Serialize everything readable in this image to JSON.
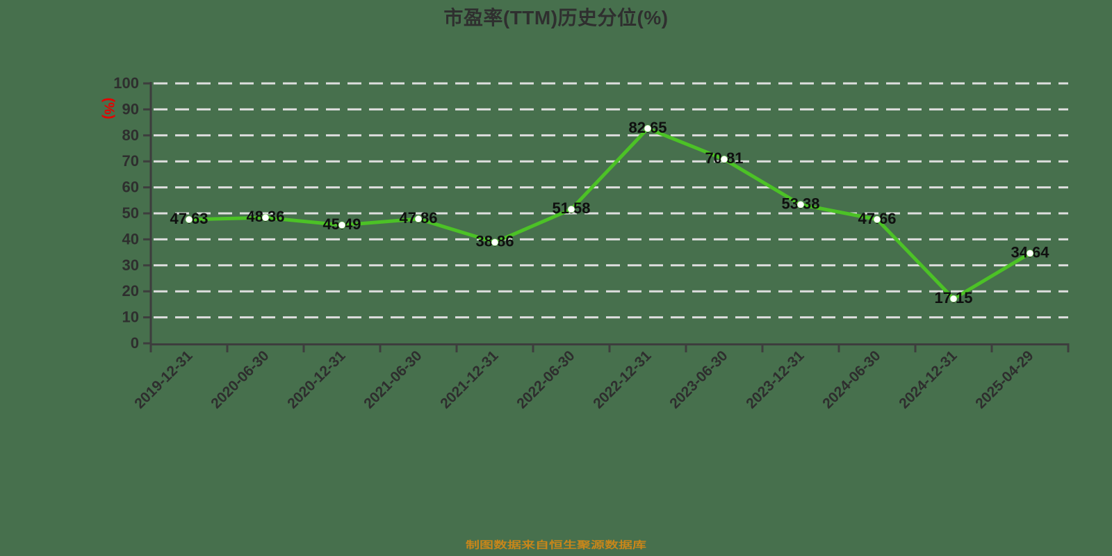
{
  "chart_data": {
    "type": "line",
    "title": "市盈率(TTM)历史分位(%)",
    "ylabel": "(%)",
    "xlabel": "",
    "footer": "制图数据来自恒生聚源数据库",
    "categories": [
      "2019-12-31",
      "2020-06-30",
      "2020-12-31",
      "2021-06-30",
      "2021-12-31",
      "2022-06-30",
      "2022-12-31",
      "2023-06-30",
      "2023-12-31",
      "2024-06-30",
      "2024-12-31",
      "2025-04-29"
    ],
    "values": [
      47.63,
      48.36,
      45.49,
      47.86,
      38.86,
      51.58,
      82.65,
      70.81,
      53.38,
      47.66,
      17.15,
      34.64
    ],
    "point_labels": [
      "47.63",
      "48.36",
      "45.49",
      "47.86",
      "38.86",
      "51.58",
      "82.65",
      "70.81",
      "53.38",
      "47.66",
      "17.15",
      "34.64"
    ],
    "ylim": [
      0,
      100
    ],
    "y_tick_interval": 10,
    "y_tick_labels": [
      "0",
      "10",
      "20",
      "30",
      "40",
      "50",
      "60",
      "70",
      "80",
      "90",
      "100"
    ],
    "grid": "horizontal-dashed",
    "legend": "none",
    "marker": "white-dot",
    "colors": {
      "background": "#47704d",
      "line": "#4cc226",
      "marker_fill": "#ffffff",
      "grid": "#dedede",
      "axis": "#3d3d3d",
      "tick_text": "#2e2e2e",
      "point_label_text": "#0f0f0f",
      "title_text": "#2f2f2f",
      "ylabel_text": "#e60000",
      "footer_text": "#c8861a"
    }
  }
}
